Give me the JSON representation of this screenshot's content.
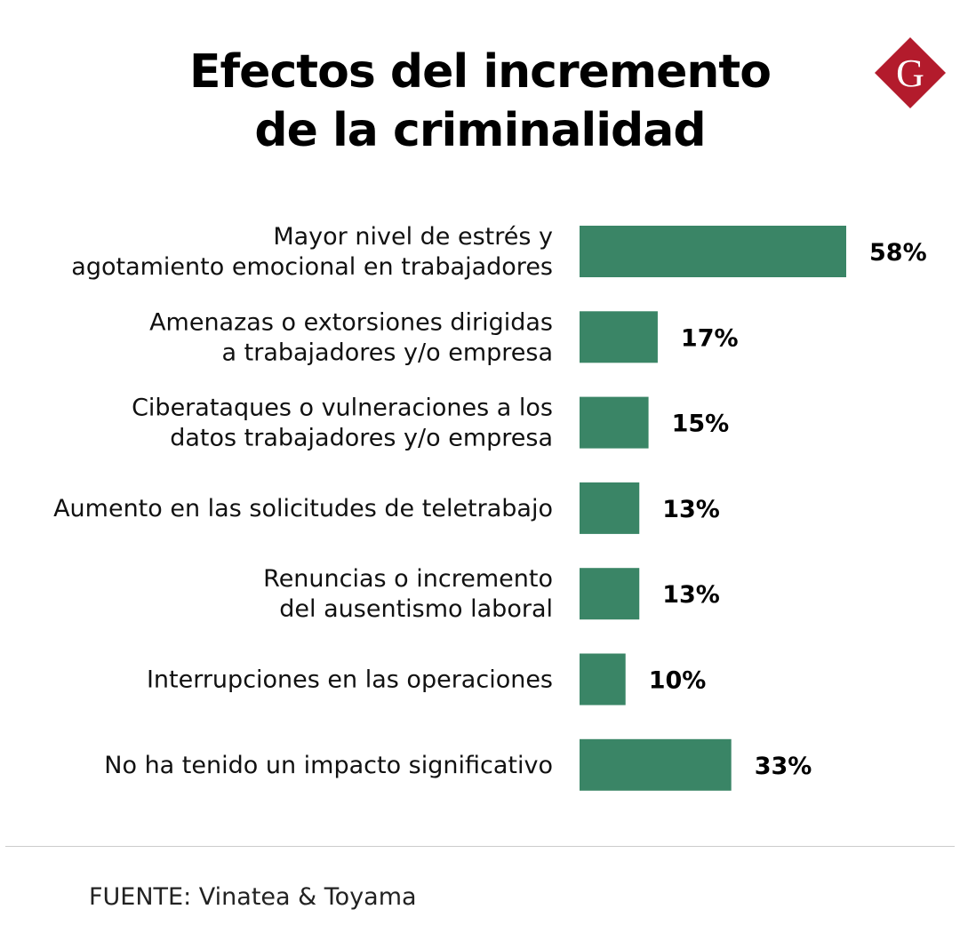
{
  "header": {
    "title_line1": "Efectos del incremento",
    "title_line2": "de la criminalidad",
    "logo_letter": "G"
  },
  "colors": {
    "bar": "#3a8566",
    "logo": "#b31b2c",
    "text": "#111111"
  },
  "chart_data": {
    "type": "bar",
    "orientation": "horizontal",
    "title": "Efectos del incremento de la criminalidad",
    "xlabel": "",
    "ylabel": "",
    "xlim": [
      0,
      58
    ],
    "grid": false,
    "categories": [
      [
        "Mayor nivel de estrés y",
        "agotamiento emocional en trabajadores"
      ],
      [
        "Amenazas o extorsiones dirigidas",
        "a trabajadores y/o empresa"
      ],
      [
        "Ciberataques o vulneraciones a los",
        "datos trabajadores y/o empresa"
      ],
      [
        "Aumento en las solicitudes de teletrabajo"
      ],
      [
        "Renuncias o incremento",
        "del ausentismo laboral"
      ],
      [
        "Interrupciones en las operaciones"
      ],
      [
        "No ha tenido un impacto significativo"
      ]
    ],
    "values": [
      58,
      17,
      15,
      13,
      13,
      10,
      33
    ],
    "value_labels": [
      "58%",
      "17%",
      "15%",
      "13%",
      "13%",
      "10%",
      "33%"
    ]
  },
  "footer": {
    "source": "FUENTE: Vinatea & Toyama"
  }
}
